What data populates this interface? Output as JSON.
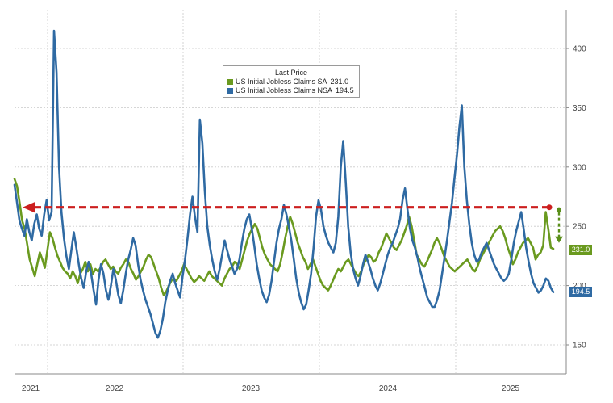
{
  "chart_data": {
    "type": "line",
    "title": "",
    "legend_title": "Last Price",
    "legend_placement": "top-center",
    "grid": true,
    "y_ticks": [
      "150",
      "200",
      "250",
      "300",
      "350",
      "400"
    ],
    "ylim": [
      120,
      430
    ],
    "x_tick_labels": [
      "2021",
      "2022",
      "2023",
      "2024",
      "2025"
    ],
    "series": [
      {
        "name": "US Initial Jobless Claims SA",
        "color": "#6a9a1f",
        "last_value": "231.0",
        "values": [
          290,
          284,
          270,
          255,
          248,
          235,
          222,
          215,
          208,
          218,
          228,
          222,
          215,
          230,
          245,
          240,
          232,
          225,
          220,
          215,
          212,
          210,
          206,
          212,
          208,
          202,
          210,
          214,
          220,
          212,
          218,
          210,
          214,
          212,
          215,
          220,
          222,
          218,
          214,
          216,
          212,
          210,
          215,
          218,
          222,
          220,
          214,
          210,
          205,
          208,
          212,
          216,
          222,
          226,
          224,
          218,
          212,
          206,
          198,
          192,
          195,
          200,
          204,
          206,
          204,
          208,
          212,
          218,
          214,
          210,
          206,
          203,
          205,
          208,
          206,
          204,
          208,
          212,
          208,
          206,
          204,
          202,
          200,
          206,
          210,
          214,
          216,
          220,
          218,
          214,
          222,
          230,
          238,
          244,
          248,
          252,
          248,
          240,
          232,
          226,
          222,
          218,
          216,
          214,
          212,
          218,
          228,
          240,
          250,
          258,
          252,
          244,
          236,
          230,
          224,
          220,
          214,
          218,
          222,
          216,
          210,
          204,
          200,
          198,
          196,
          200,
          205,
          210,
          214,
          212,
          216,
          220,
          222,
          218,
          214,
          210,
          208,
          212,
          218,
          222,
          226,
          224,
          220,
          222,
          228,
          232,
          238,
          244,
          240,
          236,
          232,
          230,
          234,
          238,
          244,
          250,
          258,
          250,
          238,
          226,
          222,
          218,
          216,
          220,
          225,
          230,
          236,
          240,
          236,
          230,
          224,
          220,
          216,
          214,
          212,
          214,
          216,
          218,
          220,
          222,
          218,
          214,
          212,
          216,
          222,
          226,
          230,
          234,
          238,
          242,
          246,
          248,
          250,
          246,
          240,
          232,
          226,
          218,
          222,
          228,
          232,
          236,
          238,
          240,
          236,
          232,
          222,
          226,
          228,
          234,
          262,
          248,
          232,
          231
        ]
      },
      {
        "name": "US Initial Jobless Claims NSA",
        "color": "#2f6aa3",
        "last_value": "194.5",
        "values": [
          285,
          270,
          255,
          248,
          242,
          256,
          245,
          238,
          252,
          260,
          248,
          242,
          260,
          272,
          255,
          262,
          415,
          380,
          300,
          262,
          240,
          225,
          214,
          230,
          245,
          232,
          218,
          206,
          198,
          212,
          220,
          210,
          196,
          184,
          205,
          218,
          210,
          196,
          188,
          200,
          214,
          205,
          192,
          185,
          196,
          210,
          222,
          230,
          240,
          234,
          218,
          205,
          196,
          188,
          182,
          176,
          168,
          160,
          156,
          162,
          172,
          186,
          196,
          204,
          210,
          202,
          196,
          190,
          208,
          222,
          240,
          260,
          275,
          258,
          245,
          340,
          320,
          280,
          250,
          234,
          222,
          212,
          205,
          214,
          226,
          238,
          230,
          222,
          216,
          210,
          214,
          222,
          236,
          248,
          256,
          260,
          248,
          234,
          218,
          206,
          196,
          190,
          186,
          192,
          204,
          220,
          236,
          248,
          256,
          268,
          260,
          250,
          238,
          222,
          206,
          194,
          186,
          180,
          184,
          196,
          210,
          232,
          258,
          272,
          264,
          250,
          242,
          236,
          232,
          228,
          236,
          258,
          300,
          322,
          288,
          250,
          228,
          214,
          206,
          200,
          208,
          218,
          226,
          220,
          214,
          206,
          200,
          196,
          202,
          210,
          218,
          226,
          232,
          236,
          242,
          248,
          256,
          272,
          282,
          264,
          248,
          238,
          232,
          224,
          214,
          206,
          198,
          190,
          186,
          182,
          182,
          188,
          196,
          210,
          224,
          238,
          254,
          270,
          290,
          310,
          334,
          352,
          300,
          272,
          252,
          236,
          226,
          220,
          222,
          228,
          232,
          236,
          230,
          224,
          218,
          214,
          210,
          206,
          204,
          206,
          210,
          222,
          236,
          246,
          254,
          262,
          248,
          232,
          220,
          210,
          202,
          198,
          194,
          196,
          200,
          206,
          204,
          198,
          194.5
        ]
      }
    ],
    "annotations": {
      "reference_level": 266,
      "arrow_color": "#cc1f1f",
      "drop_arrow_color": "#5a8f1a"
    }
  }
}
